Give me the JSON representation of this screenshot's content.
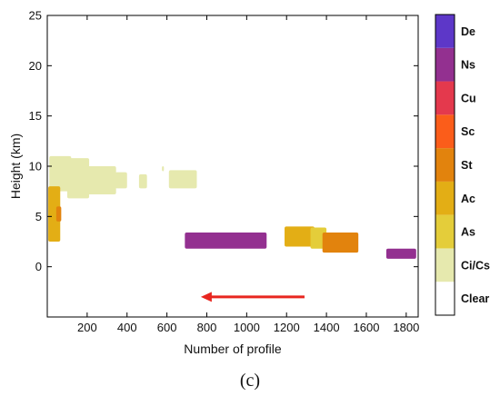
{
  "chart_data": {
    "type": "heatmap",
    "xlabel": "Number of profile",
    "ylabel": "Height (km)",
    "xlim": [
      0,
      1860
    ],
    "ylim": [
      -5,
      25
    ],
    "x_ticks": [
      200,
      400,
      600,
      800,
      1000,
      1200,
      1400,
      1600,
      1800
    ],
    "y_ticks": [
      0,
      5,
      10,
      15,
      20,
      25
    ],
    "grid": false,
    "colorbar": {
      "position": "right",
      "classes": [
        {
          "label": "Clear",
          "color": "#ffffff"
        },
        {
          "label": "Ci/Cs",
          "color": "#e6e9ae"
        },
        {
          "label": "As",
          "color": "#e4cd3a"
        },
        {
          "label": "Ac",
          "color": "#e3ae15"
        },
        {
          "label": "St",
          "color": "#e2830d"
        },
        {
          "label": "Sc",
          "color": "#fb5d1a"
        },
        {
          "label": "Cu",
          "color": "#e4394d"
        },
        {
          "label": "Ns",
          "color": "#933090"
        },
        {
          "label": "De",
          "color": "#5d37c8"
        }
      ]
    },
    "cloud_regions": [
      {
        "cloud_type": "Ci/Cs",
        "x": [
          10,
          120
        ],
        "y": [
          7.5,
          11.0
        ]
      },
      {
        "cloud_type": "Ci/Cs",
        "x": [
          100,
          210
        ],
        "y": [
          6.8,
          10.8
        ]
      },
      {
        "cloud_type": "Ci/Cs",
        "x": [
          200,
          345
        ],
        "y": [
          7.2,
          10.0
        ]
      },
      {
        "cloud_type": "Ci/Cs",
        "x": [
          340,
          400
        ],
        "y": [
          7.8,
          9.4
        ]
      },
      {
        "cloud_type": "Ci/Cs",
        "x": [
          460,
          500
        ],
        "y": [
          7.8,
          9.2
        ]
      },
      {
        "cloud_type": "Ci/Cs",
        "x": [
          575,
          585
        ],
        "y": [
          9.5,
          10.0
        ]
      },
      {
        "cloud_type": "Ci/Cs",
        "x": [
          610,
          750
        ],
        "y": [
          7.8,
          9.6
        ]
      },
      {
        "cloud_type": "Ac",
        "x": [
          5,
          65
        ],
        "y": [
          2.5,
          8.0
        ]
      },
      {
        "cloud_type": "St",
        "x": [
          45,
          70
        ],
        "y": [
          4.5,
          6.0
        ]
      },
      {
        "cloud_type": "Ns",
        "x": [
          690,
          1100
        ],
        "y": [
          1.8,
          3.4
        ]
      },
      {
        "cloud_type": "Ns",
        "x": [
          1700,
          1850
        ],
        "y": [
          0.8,
          1.8
        ]
      },
      {
        "cloud_type": "Ac",
        "x": [
          1190,
          1340
        ],
        "y": [
          2.0,
          4.0
        ]
      },
      {
        "cloud_type": "As",
        "x": [
          1320,
          1400
        ],
        "y": [
          1.8,
          3.9
        ]
      },
      {
        "cloud_type": "St",
        "x": [
          1380,
          1560
        ],
        "y": [
          1.4,
          3.4
        ]
      }
    ],
    "annotations": [
      {
        "type": "arrow",
        "color": "#e8261f",
        "from": [
          1290,
          -3
        ],
        "to": [
          770,
          -3
        ]
      }
    ]
  },
  "panel_label": "(c)"
}
